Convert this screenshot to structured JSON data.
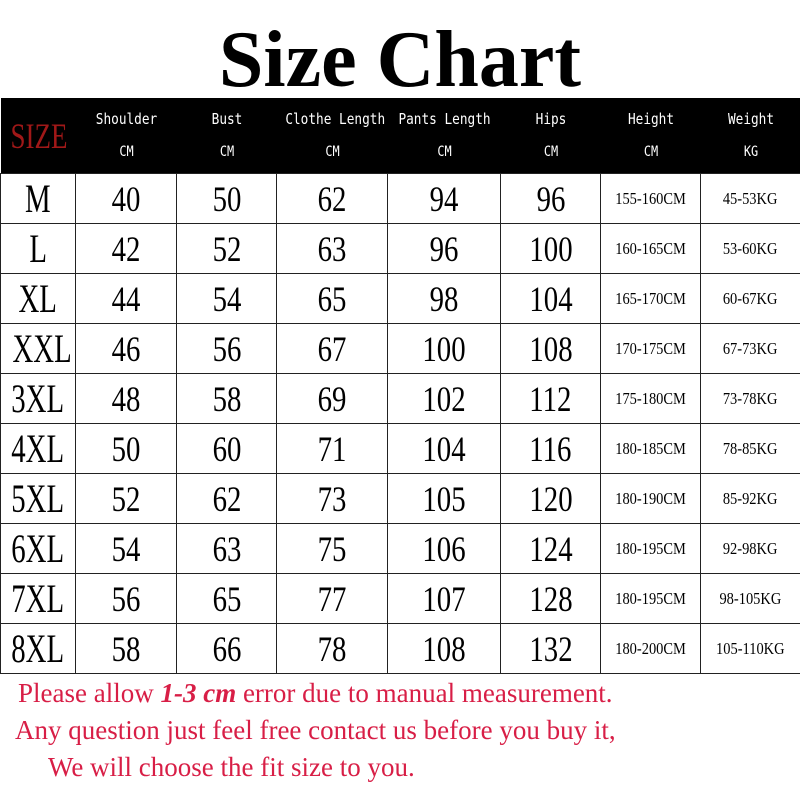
{
  "title": "Size Chart",
  "header": {
    "size_label": "SIZE",
    "columns": [
      {
        "label": "Shoulder",
        "unit": "CM"
      },
      {
        "label": "Bust",
        "unit": "CM"
      },
      {
        "label": "Clothe Length",
        "unit": "CM"
      },
      {
        "label": "Pants Length",
        "unit": "CM"
      },
      {
        "label": "Hips",
        "unit": "CM"
      },
      {
        "label": "Height",
        "unit": "CM"
      },
      {
        "label": "Weight",
        "unit": "KG"
      }
    ]
  },
  "rows": [
    [
      "M",
      "40",
      "50",
      "62",
      "94",
      "96",
      "155-160CM",
      "45-53KG"
    ],
    [
      "L",
      "42",
      "52",
      "63",
      "96",
      "100",
      "160-165CM",
      "53-60KG"
    ],
    [
      "XL",
      "44",
      "54",
      "65",
      "98",
      "104",
      "165-170CM",
      "60-67KG"
    ],
    [
      "XXL",
      "46",
      "56",
      "67",
      "100",
      "108",
      "170-175CM",
      "67-73KG"
    ],
    [
      "3XL",
      "48",
      "58",
      "69",
      "102",
      "112",
      "175-180CM",
      "73-78KG"
    ],
    [
      "4XL",
      "50",
      "60",
      "71",
      "104",
      "116",
      "180-185CM",
      "78-85KG"
    ],
    [
      "5XL",
      "52",
      "62",
      "73",
      "105",
      "120",
      "180-190CM",
      "85-92KG"
    ],
    [
      "6XL",
      "54",
      "63",
      "75",
      "106",
      "124",
      "180-195CM",
      "92-98KG"
    ],
    [
      "7XL",
      "56",
      "65",
      "77",
      "107",
      "128",
      "180-195CM",
      "98-105KG"
    ],
    [
      "8XL",
      "58",
      "66",
      "78",
      "108",
      "132",
      "180-200CM",
      "105-110KG"
    ]
  ],
  "notes": {
    "line1_pre": "Please allow ",
    "line1_em": "1-3 cm",
    "line1_post": " error due to manual measurement.",
    "line2": "Any question just feel free contact us before you buy it,",
    "line3": "We will choose the fit size to you."
  },
  "colors": {
    "header_bg": "#000000",
    "size_label": "#a01818",
    "notes": "#d81e46"
  }
}
